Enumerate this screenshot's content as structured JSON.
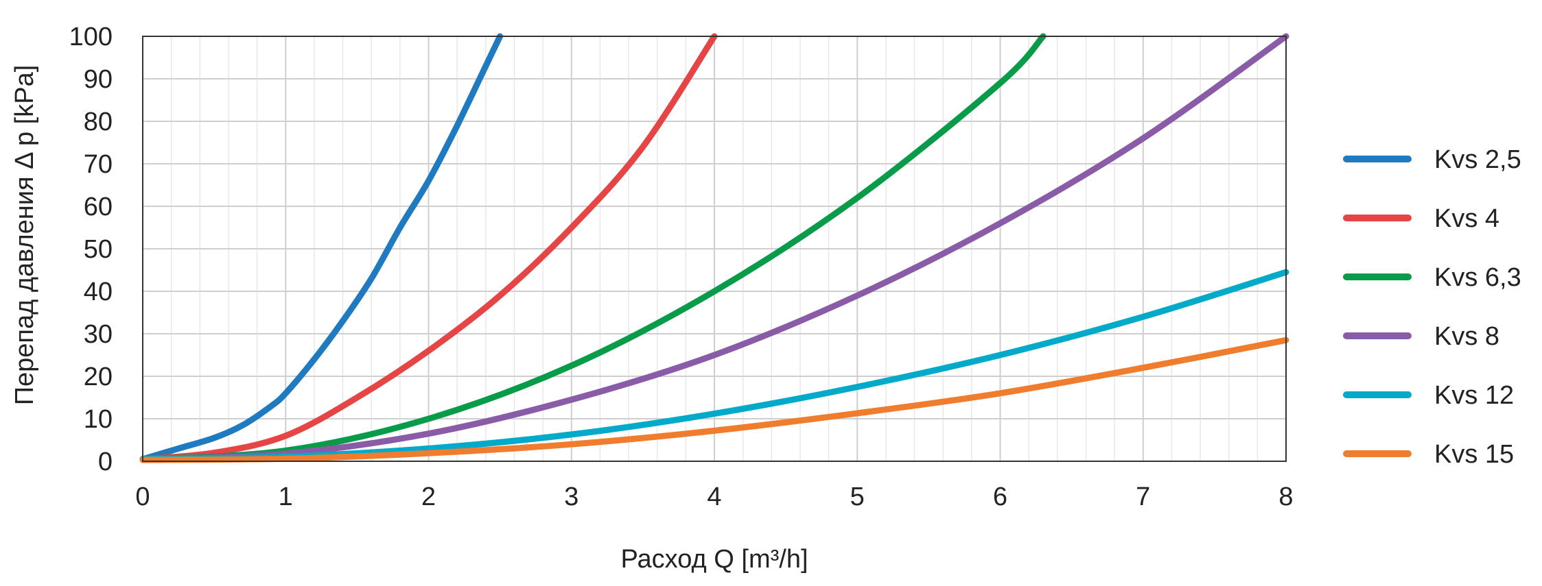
{
  "chart_data": {
    "type": "line",
    "xlabel": "Расход  Q [m³/h]",
    "ylabel": "Перепад давления Δ p [kPa]",
    "xlim": [
      0,
      8
    ],
    "ylim": [
      0,
      100
    ],
    "x_ticks": [
      "0",
      "1",
      "2",
      "3",
      "4",
      "5",
      "6",
      "7",
      "8"
    ],
    "y_ticks": [
      "0",
      "10",
      "20",
      "30",
      "40",
      "50",
      "60",
      "70",
      "80",
      "90",
      "100"
    ],
    "grid": true,
    "legend_position": "right",
    "series": [
      {
        "name": "Kvs 2,5",
        "color": "#1f7ac0",
        "points": [
          [
            0,
            0.5
          ],
          [
            0.25,
            3
          ],
          [
            0.5,
            5.5
          ],
          [
            0.7,
            8.5
          ],
          [
            0.9,
            13
          ],
          [
            1.0,
            16
          ],
          [
            1.2,
            24
          ],
          [
            1.4,
            33
          ],
          [
            1.6,
            43
          ],
          [
            1.8,
            55
          ],
          [
            2.0,
            66
          ],
          [
            2.2,
            79
          ],
          [
            2.4,
            93
          ],
          [
            2.5,
            100
          ]
        ]
      },
      {
        "name": "Kvs 4",
        "color": "#e64545",
        "points": [
          [
            0,
            0.5
          ],
          [
            0.5,
            2
          ],
          [
            1.0,
            6
          ],
          [
            1.5,
            15
          ],
          [
            2.0,
            26
          ],
          [
            2.5,
            39
          ],
          [
            3.0,
            55
          ],
          [
            3.5,
            74
          ],
          [
            4.0,
            100
          ]
        ]
      },
      {
        "name": "Kvs 6,3",
        "color": "#079b4a",
        "points": [
          [
            0,
            0.5
          ],
          [
            1,
            2.5
          ],
          [
            2,
            10
          ],
          [
            3,
            22.5
          ],
          [
            4,
            40
          ],
          [
            5,
            62
          ],
          [
            6,
            89
          ],
          [
            6.3,
            100
          ]
        ]
      },
      {
        "name": "Kvs 8",
        "color": "#8a5ca8",
        "points": [
          [
            0,
            0.5
          ],
          [
            1,
            1.8
          ],
          [
            2,
            6.5
          ],
          [
            3,
            14.5
          ],
          [
            4,
            25
          ],
          [
            5,
            39
          ],
          [
            6,
            56
          ],
          [
            7,
            76
          ],
          [
            8,
            100
          ]
        ]
      },
      {
        "name": "Kvs 12",
        "color": "#00aac8",
        "points": [
          [
            0,
            0.5
          ],
          [
            1,
            1.1
          ],
          [
            2,
            3
          ],
          [
            3,
            6.3
          ],
          [
            4,
            11.2
          ],
          [
            5,
            17.5
          ],
          [
            6,
            25
          ],
          [
            7,
            34
          ],
          [
            8,
            44.5
          ]
        ]
      },
      {
        "name": "Kvs 15",
        "color": "#f07d2e",
        "points": [
          [
            0,
            0.3
          ],
          [
            1,
            0.6
          ],
          [
            2,
            1.9
          ],
          [
            3,
            4
          ],
          [
            4,
            7.2
          ],
          [
            5,
            11.3
          ],
          [
            6,
            16
          ],
          [
            7,
            22
          ],
          [
            8,
            28.5
          ]
        ]
      }
    ]
  }
}
